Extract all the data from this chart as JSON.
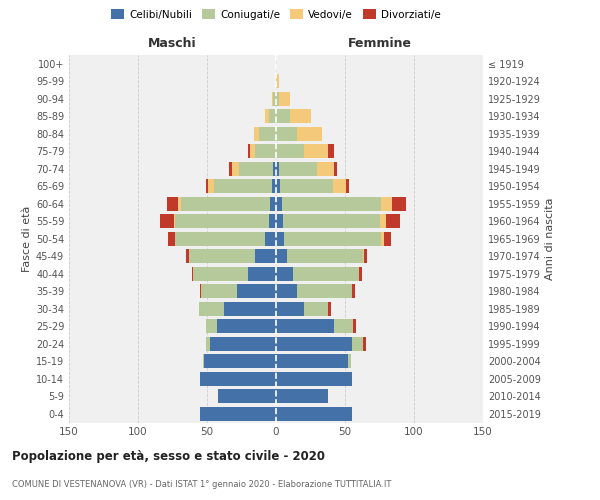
{
  "age_groups": [
    "0-4",
    "5-9",
    "10-14",
    "15-19",
    "20-24",
    "25-29",
    "30-34",
    "35-39",
    "40-44",
    "45-49",
    "50-54",
    "55-59",
    "60-64",
    "65-69",
    "70-74",
    "75-79",
    "80-84",
    "85-89",
    "90-94",
    "95-99",
    "100+"
  ],
  "birth_years": [
    "2015-2019",
    "2010-2014",
    "2005-2009",
    "2000-2004",
    "1995-1999",
    "1990-1994",
    "1985-1989",
    "1980-1984",
    "1975-1979",
    "1970-1974",
    "1965-1969",
    "1960-1964",
    "1955-1959",
    "1950-1954",
    "1945-1949",
    "1940-1944",
    "1935-1939",
    "1930-1934",
    "1925-1929",
    "1920-1924",
    "≤ 1919"
  ],
  "male_celibi": [
    55,
    42,
    55,
    52,
    48,
    43,
    38,
    28,
    20,
    15,
    8,
    5,
    4,
    3,
    2,
    0,
    0,
    0,
    0,
    0,
    0
  ],
  "male_coniugati": [
    0,
    0,
    0,
    1,
    3,
    8,
    18,
    26,
    40,
    48,
    65,
    68,
    65,
    42,
    25,
    15,
    12,
    5,
    2,
    0,
    0
  ],
  "male_vedovi": [
    0,
    0,
    0,
    0,
    0,
    0,
    0,
    0,
    0,
    0,
    0,
    1,
    2,
    4,
    5,
    4,
    4,
    3,
    1,
    0,
    0
  ],
  "male_divorziati": [
    0,
    0,
    0,
    0,
    0,
    0,
    0,
    1,
    1,
    2,
    5,
    10,
    8,
    2,
    2,
    1,
    0,
    0,
    0,
    0,
    0
  ],
  "female_nubili": [
    55,
    38,
    55,
    52,
    55,
    42,
    20,
    15,
    12,
    8,
    6,
    5,
    4,
    3,
    2,
    0,
    0,
    0,
    0,
    0,
    0
  ],
  "female_coniugate": [
    0,
    0,
    0,
    2,
    8,
    14,
    18,
    40,
    48,
    55,
    70,
    70,
    72,
    38,
    28,
    20,
    15,
    10,
    2,
    0,
    0
  ],
  "female_vedove": [
    0,
    0,
    0,
    0,
    0,
    0,
    0,
    0,
    0,
    1,
    2,
    5,
    8,
    10,
    12,
    18,
    18,
    15,
    8,
    2,
    0
  ],
  "female_divorziate": [
    0,
    0,
    0,
    0,
    2,
    2,
    2,
    2,
    2,
    2,
    5,
    10,
    10,
    2,
    2,
    4,
    0,
    0,
    0,
    0,
    0
  ],
  "color_celibi": "#4472a8",
  "color_coniugati": "#b5c99a",
  "color_vedovi": "#f5c97a",
  "color_divorziati": "#c0392b",
  "title": "Popolazione per età, sesso e stato civile - 2020",
  "subtitle": "COMUNE DI VESTENANOVA (VR) - Dati ISTAT 1° gennaio 2020 - Elaborazione TUTTITALIA.IT",
  "label_maschi": "Maschi",
  "label_femmine": "Femmine",
  "ylabel_left": "Fasce di età",
  "ylabel_right": "Anni di nascita",
  "legend_labels": [
    "Celibi/Nubili",
    "Coniugati/e",
    "Vedovi/e",
    "Divorziati/e"
  ],
  "xlim": 150,
  "bg_color": "#f0f0f0",
  "grid_color": "#cccccc"
}
